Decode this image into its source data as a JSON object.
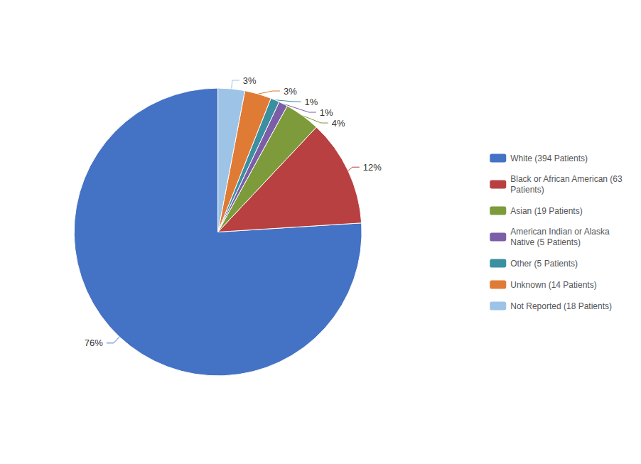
{
  "chart_data": {
    "type": "pie",
    "categories": [
      "White (394 Patients)",
      "Black or African American (63\nPatients)",
      "Asian (19 Patients)",
      "American Indian or Alaska\nNative (5 Patients)",
      "Other (5 Patients)",
      "Unknown (14 Patients)",
      "Not Reported (18 Patients)"
    ],
    "values": [
      76,
      12,
      4,
      1,
      1,
      3,
      3
    ],
    "value_labels": [
      "76%",
      "12%",
      "4%",
      "1%",
      "1%",
      "3%",
      "3%"
    ],
    "colors": [
      "#4472C4",
      "#B94040",
      "#7D9B3A",
      "#7B5EA7",
      "#3A8FA0",
      "#E07B35",
      "#9DC3E6"
    ],
    "data_labels": true,
    "legend": "right"
  }
}
